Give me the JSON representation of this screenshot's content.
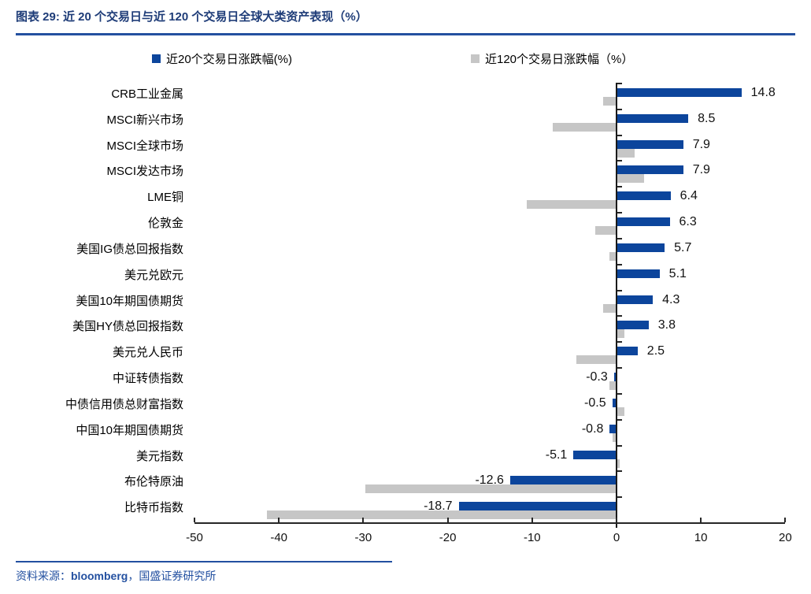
{
  "header": {
    "title": "图表 29:  近 20 个交易日与近 120 个交易日全球大类资产表现（%）"
  },
  "legend": {
    "items": [
      {
        "label": "近20个交易日涨跌幅(%)",
        "color": "#0C459C"
      },
      {
        "label": "近120个交易日涨跌幅（%）",
        "color": "#C6C6C6"
      }
    ]
  },
  "chart_data": {
    "type": "bar",
    "orientation": "horizontal",
    "title": "近 20 个交易日与近 120 个交易日全球大类资产表现（%）",
    "categories": [
      "CRB工业金属",
      "MSCI新兴市场",
      "MSCI全球市场",
      "MSCI发达市场",
      "LME铜",
      "伦敦金",
      "美国IG债总回报指数",
      "美元兑欧元",
      "美国10年期国债期货",
      "美国HY债总回报指数",
      "美元兑人民币",
      "中证转债指数",
      "中债信用债总财富指数",
      "中国10年期国债期货",
      "美元指数",
      "布伦特原油",
      "比特币指数"
    ],
    "series": [
      {
        "name": "近20个交易日涨跌幅(%)",
        "color": "#0C459C",
        "values": [
          14.8,
          8.5,
          7.9,
          7.9,
          6.4,
          6.3,
          5.7,
          5.1,
          4.3,
          3.8,
          2.5,
          -0.3,
          -0.5,
          -0.8,
          -5.1,
          -12.6,
          -18.7
        ],
        "data_labels": true
      },
      {
        "name": "近120个交易日涨跌幅（%）",
        "color": "#C6C6C6",
        "values": [
          -1.6,
          -7.6,
          2.1,
          3.3,
          -10.6,
          -2.5,
          -0.8,
          0.0,
          -1.6,
          0.9,
          -4.8,
          -0.8,
          0.9,
          -0.5,
          0.4,
          -29.8,
          -41.4
        ],
        "data_labels": false
      }
    ],
    "xlim": [
      -50,
      20
    ],
    "xticks": [
      -50,
      -40,
      -30,
      -20,
      -10,
      0,
      10,
      20
    ],
    "xtick_labels": [
      "-50",
      "-40",
      "-30",
      "-20",
      "-10",
      "0",
      "10",
      "20"
    ],
    "grid": false,
    "legend_position": "top"
  },
  "source": {
    "prefix": "资料来源：",
    "vendor": "bloomberg",
    "rest": "，国盛证券研究所"
  }
}
